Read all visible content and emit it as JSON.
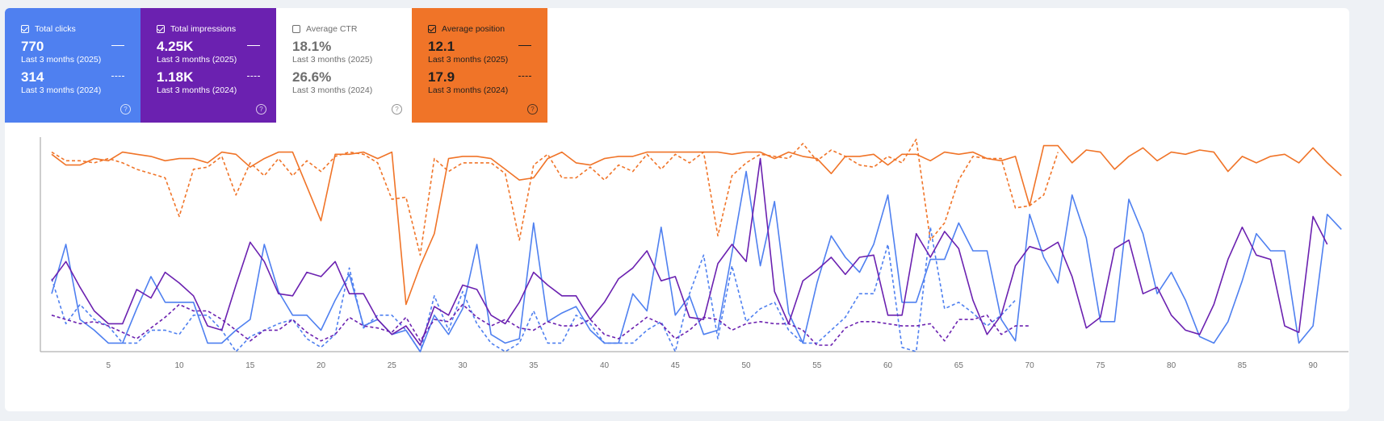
{
  "cards": [
    {
      "key": "clicks",
      "label": "Total clicks",
      "checked": true,
      "bg": "#4f80f0",
      "fg": "#ffffff",
      "value_current": "770",
      "period_current": "Last 3 months (2025)",
      "value_previous": "314",
      "period_previous": "Last 3 months (2024)"
    },
    {
      "key": "impressions",
      "label": "Total impressions",
      "checked": true,
      "bg": "#6b21b0",
      "fg": "#ffffff",
      "value_current": "4.25K",
      "period_current": "Last 3 months (2025)",
      "value_previous": "1.18K",
      "period_previous": "Last 3 months (2024)"
    },
    {
      "key": "ctr",
      "label": "Average CTR",
      "checked": false,
      "bg": "#ffffff",
      "fg": "#6e6e6e",
      "value_current": "18.1%",
      "period_current": "Last 3 months (2025)",
      "value_previous": "26.6%",
      "period_previous": "Last 3 months (2024)"
    },
    {
      "key": "position",
      "label": "Average position",
      "checked": true,
      "bg": "#f07428",
      "fg": "#1f1f1f",
      "value_current": "12.1",
      "period_current": "Last 3 months (2025)",
      "value_previous": "17.9",
      "period_previous": "Last 3 months (2024)"
    }
  ],
  "chart_data": {
    "type": "line",
    "xlim": [
      0.2,
      92.5
    ],
    "x_ticks": [
      5,
      10,
      15,
      20,
      25,
      30,
      35,
      40,
      45,
      50,
      55,
      60,
      65,
      70,
      75,
      80,
      85,
      90
    ],
    "ylim": [
      0,
      1
    ],
    "grid": false,
    "series": [
      {
        "name": "Average position",
        "period": "Last 3 months (2025)",
        "color": "#f07428",
        "style": "solid",
        "x_start": 1,
        "values": [
          0.92,
          0.87,
          0.87,
          0.9,
          0.89,
          0.93,
          0.92,
          0.91,
          0.89,
          0.9,
          0.9,
          0.88,
          0.93,
          0.92,
          0.86,
          0.9,
          0.93,
          0.93,
          0.77,
          0.61,
          0.92,
          0.92,
          0.93,
          0.9,
          0.93,
          0.22,
          0.4,
          0.55,
          0.9,
          0.91,
          0.91,
          0.9,
          0.85,
          0.8,
          0.81,
          0.9,
          0.93,
          0.88,
          0.87,
          0.9,
          0.91,
          0.91,
          0.93,
          0.93,
          0.93,
          0.93,
          0.93,
          0.93,
          0.92,
          0.93,
          0.93,
          0.9,
          0.93,
          0.91,
          0.9,
          0.83,
          0.91,
          0.91,
          0.92,
          0.87,
          0.92,
          0.92,
          0.89,
          0.93,
          0.92,
          0.93,
          0.9,
          0.89,
          0.91,
          0.68,
          0.96,
          0.96,
          0.88,
          0.94,
          0.93,
          0.85,
          0.91,
          0.95,
          0.89,
          0.93,
          0.92,
          0.94,
          0.93,
          0.84,
          0.91,
          0.88,
          0.91,
          0.92,
          0.88,
          0.95,
          0.88,
          0.82
        ]
      },
      {
        "name": "Average position",
        "period": "Last 3 months (2024)",
        "color": "#f07428",
        "style": "dashed",
        "x_start": 1,
        "values": [
          0.93,
          0.89,
          0.89,
          0.88,
          0.9,
          0.88,
          0.85,
          0.83,
          0.81,
          0.63,
          0.85,
          0.86,
          0.91,
          0.73,
          0.88,
          0.82,
          0.9,
          0.82,
          0.89,
          0.84,
          0.91,
          0.93,
          0.92,
          0.88,
          0.71,
          0.72,
          0.45,
          0.9,
          0.84,
          0.88,
          0.88,
          0.88,
          0.83,
          0.52,
          0.87,
          0.92,
          0.81,
          0.81,
          0.86,
          0.8,
          0.87,
          0.84,
          0.92,
          0.85,
          0.92,
          0.88,
          0.93,
          0.54,
          0.82,
          0.88,
          0.92,
          0.91,
          0.9,
          0.97,
          0.89,
          0.94,
          0.91,
          0.87,
          0.86,
          0.91,
          0.88,
          0.99,
          0.52,
          0.6,
          0.8,
          0.91,
          0.9,
          0.9,
          0.67,
          0.68,
          0.73,
          0.93
        ]
      },
      {
        "name": "Total clicks",
        "period": "Last 3 months (2025)",
        "color": "#4f80f0",
        "style": "solid",
        "x_start": 1,
        "values": [
          0.27,
          0.5,
          0.15,
          0.1,
          0.04,
          0.04,
          0.2,
          0.35,
          0.23,
          0.23,
          0.23,
          0.04,
          0.04,
          0.1,
          0.15,
          0.5,
          0.28,
          0.17,
          0.17,
          0.1,
          0.24,
          0.36,
          0.12,
          0.15,
          0.08,
          0.1,
          0.0,
          0.17,
          0.08,
          0.2,
          0.5,
          0.08,
          0.04,
          0.06,
          0.6,
          0.14,
          0.18,
          0.21,
          0.1,
          0.04,
          0.04,
          0.27,
          0.19,
          0.58,
          0.17,
          0.26,
          0.08,
          0.1,
          0.46,
          0.84,
          0.4,
          0.7,
          0.18,
          0.04,
          0.32,
          0.54,
          0.44,
          0.37,
          0.5,
          0.73,
          0.23,
          0.23,
          0.43,
          0.43,
          0.6,
          0.47,
          0.47,
          0.15,
          0.05,
          0.64,
          0.44,
          0.32,
          0.73,
          0.53,
          0.14,
          0.14,
          0.71,
          0.55,
          0.27,
          0.37,
          0.24,
          0.07,
          0.04,
          0.14,
          0.33,
          0.55,
          0.47,
          0.47,
          0.04,
          0.12,
          0.64,
          0.57
        ]
      },
      {
        "name": "Total clicks",
        "period": "Last 3 months (2024)",
        "color": "#4f80f0",
        "style": "dashed",
        "x_start": 1,
        "values": [
          0.34,
          0.13,
          0.22,
          0.15,
          0.12,
          0.04,
          0.04,
          0.1,
          0.1,
          0.08,
          0.17,
          0.17,
          0.1,
          0.0,
          0.07,
          0.1,
          0.13,
          0.15,
          0.06,
          0.02,
          0.08,
          0.39,
          0.11,
          0.17,
          0.17,
          0.1,
          0.0,
          0.26,
          0.1,
          0.28,
          0.13,
          0.04,
          0.0,
          0.04,
          0.19,
          0.04,
          0.04,
          0.17,
          0.13,
          0.04,
          0.04,
          0.04,
          0.1,
          0.14,
          0.0,
          0.27,
          0.45,
          0.06,
          0.4,
          0.14,
          0.2,
          0.23,
          0.1,
          0.04,
          0.04,
          0.1,
          0.16,
          0.27,
          0.27,
          0.5,
          0.02,
          0.0,
          0.58,
          0.2,
          0.23,
          0.18,
          0.12,
          0.17,
          0.24
        ]
      },
      {
        "name": "Total impressions",
        "period": "Last 3 months (2025)",
        "color": "#6b21b0",
        "style": "solid",
        "x_start": 1,
        "values": [
          0.33,
          0.42,
          0.3,
          0.19,
          0.13,
          0.13,
          0.29,
          0.25,
          0.37,
          0.32,
          0.26,
          0.12,
          0.1,
          0.31,
          0.51,
          0.42,
          0.27,
          0.26,
          0.37,
          0.35,
          0.42,
          0.27,
          0.27,
          0.15,
          0.08,
          0.12,
          0.03,
          0.21,
          0.17,
          0.31,
          0.29,
          0.17,
          0.13,
          0.23,
          0.37,
          0.31,
          0.26,
          0.26,
          0.15,
          0.23,
          0.34,
          0.39,
          0.47,
          0.33,
          0.35,
          0.16,
          0.15,
          0.41,
          0.5,
          0.42,
          0.9,
          0.28,
          0.13,
          0.33,
          0.38,
          0.44,
          0.36,
          0.44,
          0.45,
          0.17,
          0.17,
          0.55,
          0.44,
          0.56,
          0.48,
          0.24,
          0.08,
          0.17,
          0.4,
          0.49,
          0.47,
          0.51,
          0.35,
          0.11,
          0.16,
          0.48,
          0.52,
          0.27,
          0.3,
          0.17,
          0.1,
          0.08,
          0.22,
          0.43,
          0.58,
          0.45,
          0.43,
          0.12,
          0.09,
          0.63,
          0.5
        ]
      },
      {
        "name": "Total impressions",
        "period": "Last 3 months (2024)",
        "color": "#6b21b0",
        "style": "dashed",
        "x_start": 1,
        "values": [
          0.17,
          0.15,
          0.13,
          0.14,
          0.12,
          0.09,
          0.06,
          0.11,
          0.16,
          0.22,
          0.19,
          0.19,
          0.15,
          0.1,
          0.05,
          0.1,
          0.1,
          0.15,
          0.09,
          0.05,
          0.08,
          0.16,
          0.12,
          0.11,
          0.09,
          0.16,
          0.05,
          0.15,
          0.14,
          0.22,
          0.16,
          0.12,
          0.15,
          0.11,
          0.1,
          0.14,
          0.12,
          0.12,
          0.15,
          0.08,
          0.06,
          0.11,
          0.16,
          0.13,
          0.06,
          0.1,
          0.16,
          0.15,
          0.1,
          0.13,
          0.14,
          0.13,
          0.13,
          0.1,
          0.03,
          0.03,
          0.11,
          0.14,
          0.14,
          0.13,
          0.12,
          0.12,
          0.13,
          0.05,
          0.15,
          0.15,
          0.17,
          0.08,
          0.12,
          0.12
        ]
      }
    ]
  }
}
